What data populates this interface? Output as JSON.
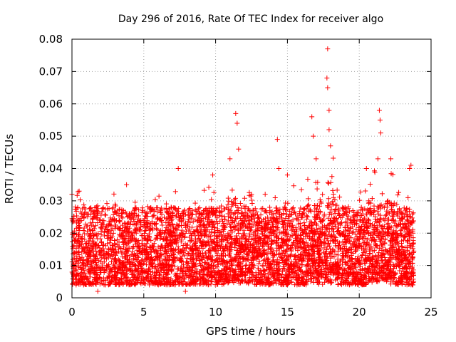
{
  "chart_data": {
    "type": "scatter",
    "title": "Day 296 of 2016, Rate Of TEC Index for receiver algo",
    "xlabel": "GPS time / hours",
    "ylabel": "ROTI / TECUs",
    "xlim": [
      0,
      25
    ],
    "ylim": [
      0,
      0.08
    ],
    "xticks": [
      0,
      5,
      10,
      15,
      20,
      25
    ],
    "xtick_labels": [
      "0",
      "5",
      "10",
      "15",
      "20",
      "25"
    ],
    "yticks": [
      0,
      0.01,
      0.02,
      0.03,
      0.04,
      0.05,
      0.06,
      0.07,
      0.08
    ],
    "ytick_labels": [
      "0",
      "0.01",
      "0.02",
      "0.03",
      "0.04",
      "0.05",
      "0.06",
      "0.07",
      "0.08"
    ],
    "grid": true,
    "marker": "+",
    "color": "#ff0000",
    "series": [
      {
        "name": "ROTI",
        "x_range": [
          0,
          23.8
        ],
        "band_typical": [
          0.004,
          0.028
        ],
        "points_notable": [
          [
            0.0,
            0.032
          ],
          [
            0.5,
            0.033
          ],
          [
            3.8,
            0.035
          ],
          [
            7.4,
            0.04
          ],
          [
            9.8,
            0.038
          ],
          [
            11.0,
            0.043
          ],
          [
            11.4,
            0.057
          ],
          [
            11.5,
            0.054
          ],
          [
            11.6,
            0.046
          ],
          [
            12.5,
            0.032
          ],
          [
            14.3,
            0.049
          ],
          [
            14.4,
            0.04
          ],
          [
            15.0,
            0.038
          ],
          [
            16.7,
            0.056
          ],
          [
            16.8,
            0.05
          ],
          [
            17.0,
            0.043
          ],
          [
            17.8,
            0.077
          ],
          [
            17.75,
            0.068
          ],
          [
            17.8,
            0.065
          ],
          [
            17.9,
            0.058
          ],
          [
            17.9,
            0.052
          ],
          [
            18.0,
            0.047
          ],
          [
            20.5,
            0.04
          ],
          [
            21.3,
            0.043
          ],
          [
            21.4,
            0.058
          ],
          [
            21.45,
            0.055
          ],
          [
            21.5,
            0.051
          ],
          [
            22.2,
            0.043
          ],
          [
            23.5,
            0.04
          ],
          [
            23.6,
            0.041
          ],
          [
            1.8,
            0.002
          ],
          [
            7.9,
            0.002
          ]
        ]
      }
    ]
  }
}
